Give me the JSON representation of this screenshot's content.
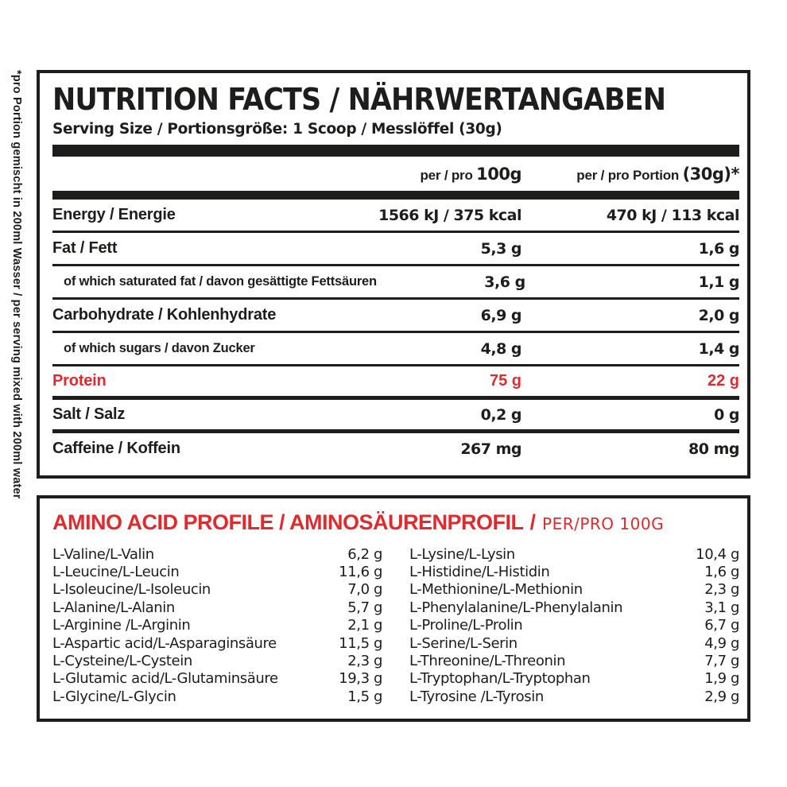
{
  "colors": {
    "ink": "#1d1d1b",
    "red": "#e12a2e"
  },
  "side_note": "*pro Portion gemischt in 200ml Wasser / per serving mixed with 200ml water",
  "nutrition": {
    "title": "NUTRITION FACTS / NÄHRWERTANGABEN",
    "serving": "Serving Size / Portionsgröße: 1 Scoop / Messlöffel (30g)",
    "columns": {
      "col1_prefix": "per / pro",
      "col1_value": "100g",
      "col2_prefix": "per / pro Portion",
      "col2_value": "(30g)*"
    },
    "rows": [
      {
        "label": "Energy / Energie",
        "per100": "1566 kJ / 375 kcal",
        "portion": "470 kJ / 113 kcal"
      },
      {
        "label": "Fat / Fett",
        "per100": "5,3 g",
        "portion": "1,6 g"
      },
      {
        "label": "of which saturated fat / davon gesättigte Fettsäuren",
        "per100": "3,6 g",
        "portion": "1,1 g"
      },
      {
        "label": "Carbohydrate / Kohlenhydrate",
        "per100": "6,9 g",
        "portion": "2,0 g"
      },
      {
        "label": "of which sugars / davon Zucker",
        "per100": "4,8 g",
        "portion": "1,4 g"
      },
      {
        "label": "Protein",
        "per100": "75 g",
        "portion": "22 g"
      },
      {
        "label": "Salt / Salz",
        "per100": "0,2 g",
        "portion": "0 g"
      },
      {
        "label": "Caffeine / Koffein",
        "per100": "267 mg",
        "portion": "80 mg"
      }
    ]
  },
  "amino": {
    "title_main": "AMINO ACID PROFILE / AMINOSÄURENPROFIL",
    "title_sep": "/",
    "title_suffix": "PER/PRO 100G",
    "left": [
      {
        "name": "L-Valine/L-Valin",
        "value": "6,2 g"
      },
      {
        "name": "L-Leucine/L-Leucin",
        "value": "11,6 g"
      },
      {
        "name": "L-Isoleucine/L-Isoleucin",
        "value": "7,0 g"
      },
      {
        "name": "L-Alanine/L-Alanin",
        "value": "5,7 g"
      },
      {
        "name": "L-Arginine /L-Arginin",
        "value": "2,1 g"
      },
      {
        "name": "L-Aspartic acid/L-Asparaginsäure",
        "value": "11,5 g"
      },
      {
        "name": "L-Cysteine/L-Cystein",
        "value": "2,3 g"
      },
      {
        "name": "L-Glutamic acid/L-Glutaminsäure",
        "value": "19,3 g"
      },
      {
        "name": "L-Glycine/L-Glycin",
        "value": "1,5 g"
      }
    ],
    "right": [
      {
        "name": "L-Lysine/L-Lysin",
        "value": "10,4 g"
      },
      {
        "name": "L-Histidine/L-Histidin",
        "value": "1,6 g"
      },
      {
        "name": "L-Methionine/L-Methionin",
        "value": "2,3 g"
      },
      {
        "name": "L-Phenylalanine/L-Phenylalanin",
        "value": "3,1 g"
      },
      {
        "name": "L-Proline/L-Prolin",
        "value": "6,7 g"
      },
      {
        "name": "L-Serine/L-Serin",
        "value": "4,9 g"
      },
      {
        "name": "L-Threonine/L-Threonin",
        "value": "7,7 g"
      },
      {
        "name": "L-Tryptophan/L-Tryptophan",
        "value": "1,9 g"
      },
      {
        "name": "L-Tyrosine /L-Tyrosin",
        "value": "2,9 g"
      }
    ]
  }
}
